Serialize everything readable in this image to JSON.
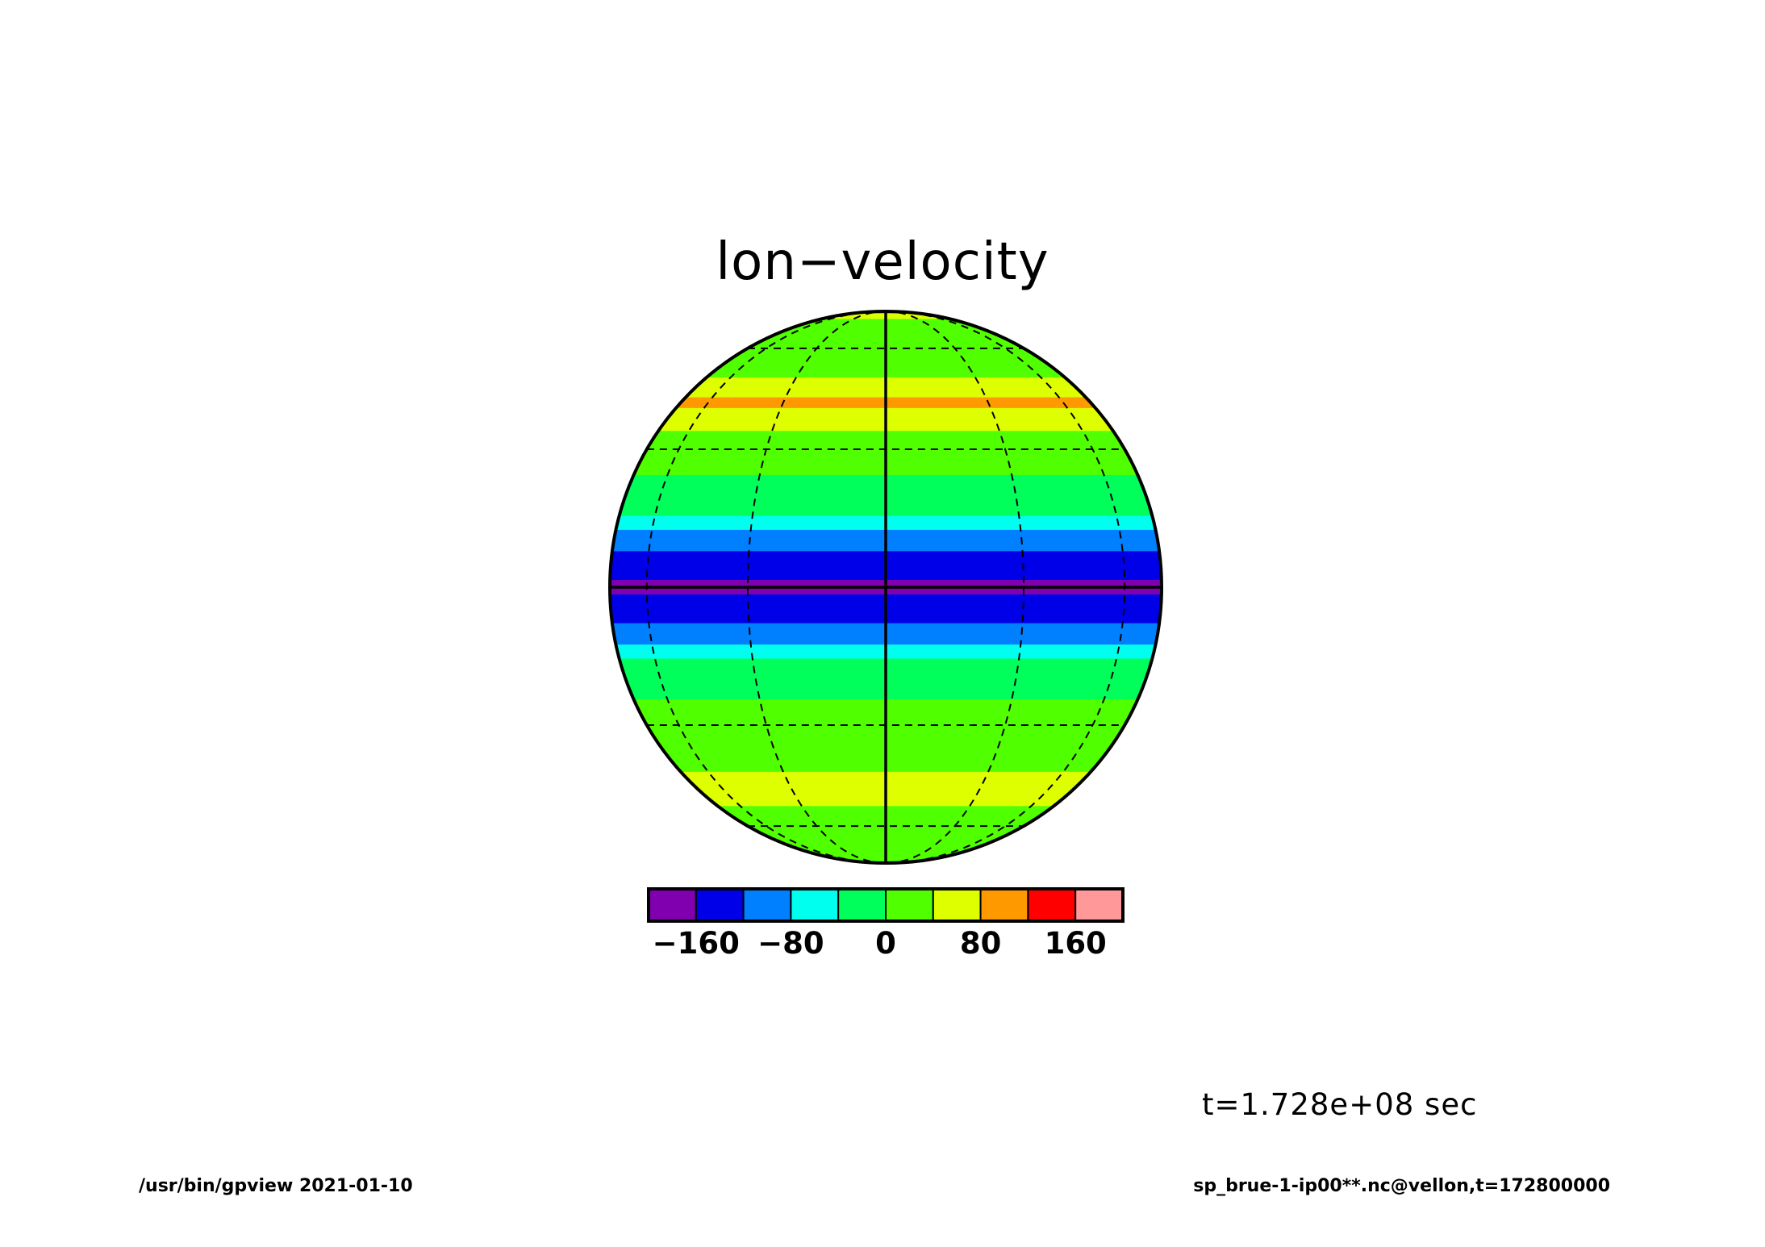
{
  "chart_data": {
    "type": "heatmap",
    "title": "lon−velocity",
    "projection": "orthographic globe",
    "grid": true,
    "colorbar": {
      "levels": [
        -200,
        -160,
        -120,
        -80,
        -40,
        0,
        40,
        80,
        120,
        160,
        200
      ],
      "colors": [
        "#8000b0",
        "#0000e8",
        "#0080ff",
        "#00ffee",
        "#00ff5a",
        "#50ff00",
        "#ddff00",
        "#ff9900",
        "#ff0000",
        "#ff9999"
      ],
      "tick_values": [
        -160,
        -80,
        0,
        80,
        160
      ],
      "tick_labels": [
        "−160",
        "−80",
        "0",
        "80",
        "160"
      ]
    },
    "zonal_bands": [
      {
        "lat": 90,
        "value": 20
      },
      {
        "lat": 78,
        "value": 50
      },
      {
        "lat": 72,
        "value": 20
      },
      {
        "lat": 64,
        "value": 0
      },
      {
        "lat": 56,
        "value": 20
      },
      {
        "lat": 48,
        "value": 45
      },
      {
        "lat": 42,
        "value": 85
      },
      {
        "lat": 37,
        "value": 70
      },
      {
        "lat": 32,
        "value": 20
      },
      {
        "lat": 24,
        "value": 0
      },
      {
        "lat": 18,
        "value": -20
      },
      {
        "lat": 13,
        "value": -60
      },
      {
        "lat": 9,
        "value": -110
      },
      {
        "lat": 4,
        "value": -150
      },
      {
        "lat": 0,
        "value": -170
      },
      {
        "lat": -4,
        "value": -150
      },
      {
        "lat": -9,
        "value": -110
      },
      {
        "lat": -13,
        "value": -60
      },
      {
        "lat": -18,
        "value": -20
      },
      {
        "lat": -24,
        "value": 0
      },
      {
        "lat": -32,
        "value": 10
      },
      {
        "lat": -40,
        "value": 30
      },
      {
        "lat": -46,
        "value": 75
      },
      {
        "lat": -52,
        "value": 40
      },
      {
        "lat": -62,
        "value": 20
      },
      {
        "lat": -72,
        "value": 30
      },
      {
        "lat": -90,
        "value": 20
      }
    ],
    "time_label": "t=1.728e+08 sec"
  },
  "footer": {
    "left": "/usr/bin/gpview   2021-01-10",
    "right": "sp_brue-1-ip00**.nc@vellon,t=172800000"
  }
}
